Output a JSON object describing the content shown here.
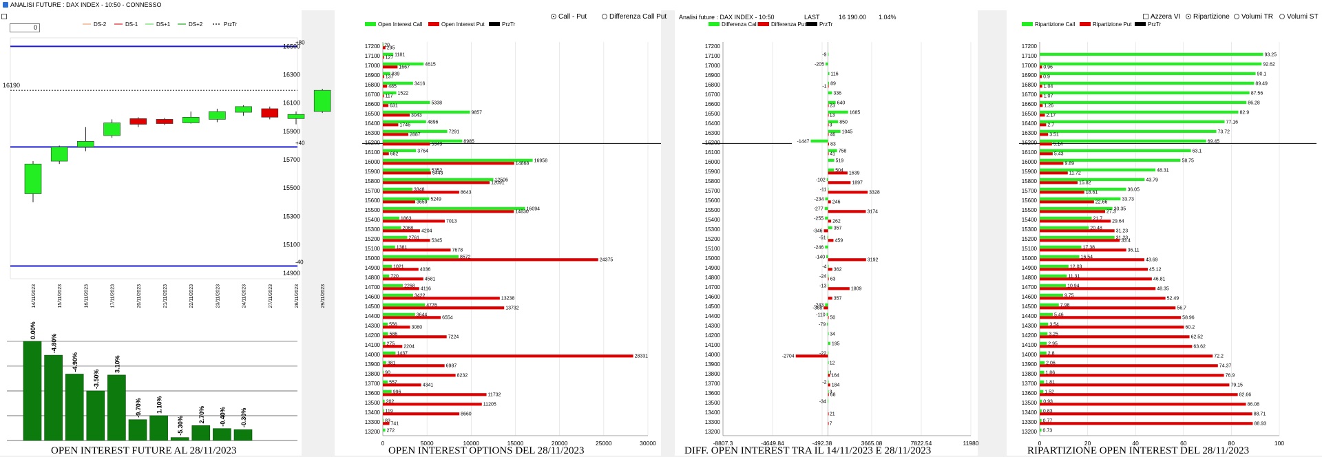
{
  "window": {
    "title": "ANALISI FUTURE : DAX INDEX - 10:50 - CONNESSO"
  },
  "future": {
    "spin_value": "0",
    "legend": [
      "DS-2",
      "DS-1",
      "DS+1",
      "DS+2",
      "PrzTr"
    ],
    "legend_colors": [
      "#f0a070",
      "#dd2222",
      "#66dd66",
      "#22aa22",
      "#000000"
    ],
    "y_ticks": [
      "16500",
      "16300",
      "16100",
      "15900",
      "15700",
      "15500",
      "15300",
      "15100",
      "14900"
    ],
    "last_label": "16190",
    "band_labels": [
      "+80",
      "+40",
      "-40"
    ],
    "dates": [
      "14/11/2023",
      "15/11/2023",
      "16/11/2023",
      "17/11/2023",
      "20/11/2023",
      "21/11/2023",
      "22/11/2023",
      "23/11/2023",
      "24/11/2023",
      "27/11/2023",
      "28/11/2023",
      "29/11/2023"
    ],
    "candles": [
      {
        "o": 15460,
        "c": 15670,
        "h": 15690,
        "l": 15400,
        "col": "green"
      },
      {
        "o": 15690,
        "c": 15790,
        "h": 15800,
        "l": 15670,
        "col": "green"
      },
      {
        "o": 15790,
        "c": 15830,
        "h": 15930,
        "l": 15760,
        "col": "green"
      },
      {
        "o": 15870,
        "c": 15960,
        "h": 15985,
        "l": 15855,
        "col": "green"
      },
      {
        "o": 15990,
        "c": 15950,
        "h": 16000,
        "l": 15930,
        "col": "red"
      },
      {
        "o": 15985,
        "c": 15955,
        "h": 15995,
        "l": 15945,
        "col": "red"
      },
      {
        "o": 15960,
        "c": 16000,
        "h": 16040,
        "l": 15955,
        "col": "green"
      },
      {
        "o": 15985,
        "c": 16040,
        "h": 16060,
        "l": 15965,
        "col": "green"
      },
      {
        "o": 16035,
        "c": 16075,
        "h": 16085,
        "l": 16010,
        "col": "green"
      },
      {
        "o": 16060,
        "c": 16000,
        "h": 16075,
        "l": 15985,
        "col": "red"
      },
      {
        "o": 15990,
        "c": 16020,
        "h": 16040,
        "l": 15950,
        "col": "green"
      },
      {
        "o": 16040,
        "c": 16190,
        "h": 16200,
        "l": 16030,
        "col": "green"
      }
    ],
    "oi_bars": [
      {
        "v": 100,
        "l": "0.00%"
      },
      {
        "v": 86,
        "l": "-4.80%"
      },
      {
        "v": 67,
        "l": "-4.90%"
      },
      {
        "v": 50,
        "l": "-3.50%"
      },
      {
        "v": 66,
        "l": "3.10%"
      },
      {
        "v": 21,
        "l": "-9.70%"
      },
      {
        "v": 25,
        "l": "1.10%"
      },
      {
        "v": 3,
        "l": "-5.30%"
      },
      {
        "v": 15,
        "l": "2.70%"
      },
      {
        "v": 12,
        "l": "-0.40%"
      },
      {
        "v": 11,
        "l": "-0.30%"
      }
    ],
    "footer": "OPEN INTEREST FUTURE AL 28/11/2023"
  },
  "options": {
    "legend": [
      "Open Interest Call",
      "Open Interest Put",
      "PrzTr"
    ],
    "radios": [
      "Call - Put",
      "Differenza Call Put"
    ],
    "x_ticks": [
      "0",
      "5000",
      "10000",
      "15000",
      "20000",
      "25000",
      "30000"
    ],
    "footer": "OPEN INTEREST OPTIONS DEL 28/11/2023"
  },
  "diff": {
    "header": "Analisi future : DAX INDEX - 10:50",
    "last_label": "LAST",
    "last_value": "16 190.00",
    "last_pct": "1.04%",
    "legend": [
      "Differenza Call",
      "Differenza Put",
      "PrzTr"
    ],
    "x_ticks": [
      "-8807.3",
      "-4649.84",
      "-492.38",
      "3665.08",
      "7822.54",
      "11980"
    ],
    "footer": "DIFF. OPEN INTEREST TRA IL 14/11/2023 E 28/11/2023"
  },
  "ripartizione": {
    "legend": [
      "Ripartizione Call",
      "Ripartizione Put",
      "PrzTr"
    ],
    "checkbox": "Azzera VI",
    "radios": [
      "Ripartizione",
      "Volumi TR",
      "Volumi ST"
    ],
    "x_ticks": [
      "0",
      "20",
      "40",
      "60",
      "80",
      "100"
    ],
    "footer": "RIPARTIZIONE OPEN INTEREST DEL 28/11/2023"
  },
  "chart_data": [
    {
      "type": "bar",
      "title": "OPEN INTEREST OPTIONS DEL 28/11/2023",
      "categories": [
        "17200",
        "17100",
        "17000",
        "16900",
        "16800",
        "16700",
        "16600",
        "16500",
        "16400",
        "16300",
        "16200",
        "16100",
        "16000",
        "15900",
        "15800",
        "15700",
        "15600",
        "15500",
        "15400",
        "15300",
        "15200",
        "15100",
        "15000",
        "14900",
        "14800",
        "14700",
        "14600",
        "14500",
        "14400",
        "14300",
        "14200",
        "14100",
        "14000",
        "13900",
        "13800",
        "13700",
        "13600",
        "13500",
        "13400",
        "13300",
        "13200"
      ],
      "series": [
        {
          "name": "Open Interest Call",
          "values": [
            20,
            1181,
            4615,
            839,
            3416,
            1522,
            5338,
            9857,
            4896,
            7291,
            8985,
            3764,
            16958,
            5352,
            12506,
            3348,
            5249,
            16094,
            1863,
            2068,
            2761,
            1381,
            8572,
            1021,
            720,
            2268,
            3422,
            4776,
            3644,
            556,
            586,
            275,
            1437,
            381,
            90,
            557,
            996,
            202,
            119,
            83,
            272
          ]
        },
        {
          "name": "Open Interest Put",
          "values": [
            295,
            127,
            1667,
            137,
            485,
            117,
            631,
            3043,
            1746,
            2887,
            5343,
            682,
            14868,
            5443,
            12091,
            8643,
            3659,
            14830,
            7013,
            4204,
            5345,
            7678,
            24375,
            4036,
            4581,
            4116,
            13238,
            13732,
            6554,
            3080,
            7224,
            2204,
            28331,
            6987,
            8232,
            4341,
            11732,
            11205,
            8660,
            741,
            0
          ]
        }
      ],
      "xlim": [
        0,
        30000
      ]
    },
    {
      "type": "bar",
      "title": "DIFF. OPEN INTEREST TRA IL 14/11/2023 E 28/11/2023",
      "categories": [
        "17200",
        "17100",
        "17000",
        "16900",
        "16800",
        "16700",
        "16600",
        "16500",
        "16400",
        "16300",
        "16200",
        "16100",
        "16000",
        "15900",
        "15800",
        "15700",
        "15600",
        "15500",
        "15400",
        "15300",
        "15200",
        "15100",
        "15000",
        "14900",
        "14800",
        "14700",
        "14600",
        "14500",
        "14400",
        "14300",
        "14200",
        "14100",
        "14000",
        "13900",
        "13800",
        "13700",
        "13600",
        "13500",
        "13400",
        "13300",
        "13200"
      ],
      "series": [
        {
          "name": "Differenza Call",
          "values": [
            0,
            -9,
            -205,
            116,
            89,
            336,
            640,
            1685,
            850,
            1045,
            -1447,
            758,
            519,
            504,
            -102,
            -11,
            -234,
            -277,
            -255,
            357,
            -51,
            -246,
            -140,
            -4,
            -24,
            -13,
            0,
            -243,
            -110,
            -79,
            34,
            195,
            -22,
            12,
            1,
            -2,
            3,
            -34,
            0,
            0,
            0
          ]
        },
        {
          "name": "Differenza Put",
          "values": [
            0,
            0,
            0,
            0,
            -1,
            0,
            23,
            13,
            3,
            46,
            83,
            41,
            0,
            1639,
            1897,
            3328,
            246,
            3174,
            262,
            -346,
            459,
            0,
            3192,
            362,
            63,
            1809,
            357,
            -368,
            50,
            0,
            0,
            0,
            -2704,
            0,
            164,
            184,
            68,
            0,
            21,
            7,
            0
          ]
        }
      ],
      "xlim": [
        -8807.3,
        11980
      ]
    },
    {
      "type": "bar",
      "title": "RIPARTIZIONE OPEN INTEREST DEL 28/11/2023",
      "categories": [
        "17200",
        "17100",
        "17000",
        "16900",
        "16800",
        "16700",
        "16600",
        "16500",
        "16400",
        "16300",
        "16200",
        "16100",
        "16000",
        "15900",
        "15800",
        "15700",
        "15600",
        "15500",
        "15400",
        "15300",
        "15200",
        "15100",
        "15000",
        "14900",
        "14800",
        "14700",
        "14600",
        "14500",
        "14400",
        "14300",
        "14200",
        "14100",
        "14000",
        "13900",
        "13800",
        "13700",
        "13600",
        "13500",
        "13400",
        "13300",
        "13200"
      ],
      "series": [
        {
          "name": "Ripartizione Call",
          "values": [
            0,
            93.25,
            92.62,
            90.1,
            89.49,
            87.56,
            86.28,
            82.9,
            77.16,
            73.72,
            69.45,
            63.1,
            58.75,
            48.31,
            43.79,
            36.05,
            33.73,
            30.35,
            21.7,
            20.48,
            31.23,
            17.38,
            16.54,
            12.03,
            11.31,
            10.94,
            9.75,
            7.98,
            5.46,
            3.54,
            3.25,
            2.95,
            2.8,
            2.06,
            1.86,
            1.81,
            1.52,
            0.93,
            0.83,
            0.77,
            0.73
          ]
        },
        {
          "name": "Ripartizione Put",
          "values": [
            0,
            0,
            0.96,
            0.9,
            1.04,
            1.07,
            1.26,
            2.17,
            2.7,
            3.51,
            5.14,
            5.43,
            9.89,
            11.72,
            15.82,
            18.61,
            22.66,
            27.3,
            29.64,
            31.23,
            33.4,
            36.11,
            43.69,
            45.12,
            46.81,
            48.35,
            52.49,
            56.7,
            58.96,
            60.2,
            62.52,
            63.62,
            72.2,
            74.37,
            76.9,
            79.15,
            82.66,
            86.08,
            88.71,
            88.93,
            0
          ]
        }
      ],
      "xlim": [
        0,
        100
      ]
    }
  ]
}
